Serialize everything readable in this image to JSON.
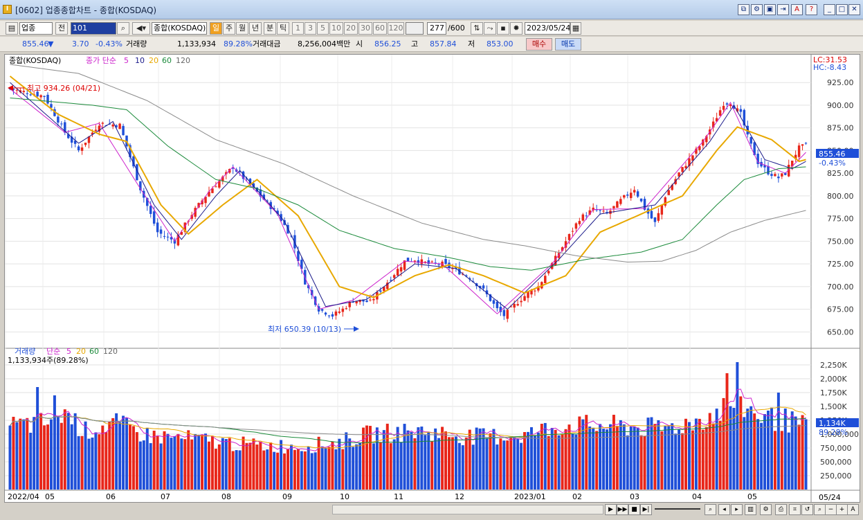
{
  "window": {
    "title": "[0602] 업종종합차트 - 종합(KOSDAQ)"
  },
  "toolbar": {
    "market": "업종",
    "mode": "전",
    "code": "101",
    "name": "종합(KOSDAQ)",
    "periods": [
      "일",
      "주",
      "월",
      "년",
      "분",
      "틱"
    ],
    "active_period": "일",
    "intervals": [
      "1",
      "3",
      "5",
      "10",
      "20",
      "30",
      "60",
      "120"
    ],
    "count": "277",
    "count_max": "/600",
    "date": "2023/05/24"
  },
  "quote": {
    "price": "855.46",
    "direction": "▼",
    "change": "3.70",
    "change_pct": "-0.43%",
    "volume_label": "거래량",
    "volume": "1,133,934",
    "volume_ratio": "89.28%",
    "amount_label": "거래대금",
    "amount": "8,256,004백만",
    "open_label": "시",
    "open": "856.25",
    "high_label": "고",
    "high": "857.84",
    "low_label": "저",
    "low": "853.00",
    "buy_label": "매수",
    "sell_label": "매도"
  },
  "colors": {
    "up": "#e8261a",
    "down": "#1f4fd8",
    "ma5": "#cc22cc",
    "ma10": "#1a1a8a",
    "ma20": "#e8a800",
    "ma60": "#1a8a3a",
    "ma120": "#8a8a8a"
  },
  "bottom": {
    "scroll_label": "5/24"
  },
  "chart_data": [
    {
      "type": "candlestick",
      "title": "종합(KOSDAQ)",
      "legend": {
        "prefix": "종가 단순",
        "periods": [
          "5",
          "10",
          "20",
          "60",
          "120"
        ]
      },
      "ylim": [
        635,
        945
      ],
      "yticks": [
        "925.00",
        "900.00",
        "875.00",
        "850.00",
        "825.00",
        "800.00",
        "775.00",
        "750.00",
        "725.00",
        "700.00",
        "675.00",
        "650.00"
      ],
      "xlabels": [
        "2022/04",
        "05",
        "06",
        "07",
        "08",
        "09",
        "10",
        "11",
        "12",
        "2023/01",
        "02",
        "03",
        "04",
        "05"
      ],
      "xlabel_right": "05/24",
      "last_price_label": "855.46",
      "last_change_label": "-0.43%",
      "lc_label": "LC:31.53",
      "hc_label": "HC:-8.43",
      "high_annotation": "최고 934.26 (04/21)",
      "low_annotation": "최저 650.39 (10/13)",
      "close_anchors": [
        [
          0,
          918
        ],
        [
          10,
          910
        ],
        [
          16,
          870
        ],
        [
          20,
          850
        ],
        [
          26,
          880
        ],
        [
          32,
          878
        ],
        [
          38,
          808
        ],
        [
          43,
          760
        ],
        [
          48,
          750
        ],
        [
          53,
          780
        ],
        [
          58,
          805
        ],
        [
          62,
          820
        ],
        [
          65,
          832
        ],
        [
          68,
          820
        ],
        [
          73,
          800
        ],
        [
          78,
          780
        ],
        [
          82,
          755
        ],
        [
          86,
          705
        ],
        [
          90,
          675
        ],
        [
          94,
          668
        ],
        [
          97,
          675
        ],
        [
          100,
          685
        ],
        [
          105,
          683
        ],
        [
          110,
          705
        ],
        [
          115,
          728
        ],
        [
          118,
          730
        ],
        [
          122,
          725
        ],
        [
          126,
          725
        ],
        [
          130,
          718
        ],
        [
          134,
          710
        ],
        [
          138,
          696
        ],
        [
          142,
          675
        ],
        [
          144,
          668
        ],
        [
          148,
          683
        ],
        [
          151,
          693
        ],
        [
          154,
          700
        ],
        [
          158,
          725
        ],
        [
          162,
          750
        ],
        [
          166,
          775
        ],
        [
          170,
          785
        ],
        [
          174,
          780
        ],
        [
          178,
          795
        ],
        [
          182,
          808
        ],
        [
          185,
          786
        ],
        [
          188,
          770
        ],
        [
          191,
          800
        ],
        [
          195,
          825
        ],
        [
          199,
          845
        ],
        [
          202,
          860
        ],
        [
          205,
          880
        ],
        [
          208,
          902
        ],
        [
          210,
          903
        ],
        [
          213,
          890
        ],
        [
          215,
          865
        ],
        [
          218,
          837
        ],
        [
          221,
          826
        ],
        [
          224,
          820
        ],
        [
          226,
          825
        ],
        [
          228,
          840
        ],
        [
          230,
          853
        ],
        [
          232,
          855.46
        ]
      ],
      "ma_anchors": {
        "ma5": [
          [
            0,
            918
          ],
          [
            16,
            870
          ],
          [
            26,
            880
          ],
          [
            38,
            808
          ],
          [
            48,
            750
          ],
          [
            58,
            805
          ],
          [
            65,
            832
          ],
          [
            78,
            780
          ],
          [
            90,
            675
          ],
          [
            100,
            685
          ],
          [
            115,
            728
          ],
          [
            126,
            725
          ],
          [
            142,
            670
          ],
          [
            158,
            725
          ],
          [
            170,
            785
          ],
          [
            185,
            786
          ],
          [
            202,
            860
          ],
          [
            210,
            903
          ],
          [
            218,
            837
          ],
          [
            226,
            825
          ],
          [
            232,
            848
          ]
        ],
        "ma10": [
          [
            0,
            925
          ],
          [
            20,
            858
          ],
          [
            30,
            882
          ],
          [
            42,
            790
          ],
          [
            50,
            752
          ],
          [
            60,
            800
          ],
          [
            67,
            828
          ],
          [
            80,
            772
          ],
          [
            92,
            678
          ],
          [
            104,
            686
          ],
          [
            118,
            725
          ],
          [
            130,
            720
          ],
          [
            145,
            675
          ],
          [
            160,
            730
          ],
          [
            172,
            780
          ],
          [
            188,
            790
          ],
          [
            204,
            860
          ],
          [
            211,
            900
          ],
          [
            220,
            840
          ],
          [
            228,
            830
          ],
          [
            232,
            838
          ]
        ],
        "ma20": [
          [
            0,
            932
          ],
          [
            14,
            890
          ],
          [
            26,
            868
          ],
          [
            34,
            860
          ],
          [
            44,
            790
          ],
          [
            52,
            758
          ],
          [
            62,
            790
          ],
          [
            72,
            818
          ],
          [
            84,
            778
          ],
          [
            96,
            700
          ],
          [
            106,
            688
          ],
          [
            118,
            712
          ],
          [
            128,
            724
          ],
          [
            138,
            712
          ],
          [
            150,
            693
          ],
          [
            162,
            712
          ],
          [
            172,
            760
          ],
          [
            184,
            780
          ],
          [
            196,
            800
          ],
          [
            206,
            850
          ],
          [
            212,
            876
          ],
          [
            222,
            862
          ],
          [
            230,
            838
          ],
          [
            232,
            840
          ]
        ],
        "ma60": [
          [
            0,
            908
          ],
          [
            24,
            900
          ],
          [
            34,
            895
          ],
          [
            46,
            855
          ],
          [
            60,
            818
          ],
          [
            72,
            808
          ],
          [
            84,
            790
          ],
          [
            96,
            762
          ],
          [
            112,
            742
          ],
          [
            128,
            732
          ],
          [
            140,
            722
          ],
          [
            152,
            718
          ],
          [
            168,
            730
          ],
          [
            184,
            738
          ],
          [
            196,
            752
          ],
          [
            206,
            790
          ],
          [
            214,
            818
          ],
          [
            224,
            830
          ],
          [
            232,
            832
          ]
        ],
        "ma120": [
          [
            0,
            945
          ],
          [
            20,
            935
          ],
          [
            40,
            905
          ],
          [
            60,
            862
          ],
          [
            80,
            835
          ],
          [
            100,
            800
          ],
          [
            120,
            770
          ],
          [
            138,
            752
          ],
          [
            150,
            745
          ],
          [
            165,
            734
          ],
          [
            180,
            727
          ],
          [
            190,
            728
          ],
          [
            200,
            740
          ],
          [
            210,
            760
          ],
          [
            220,
            773
          ],
          [
            232,
            784
          ]
        ]
      }
    },
    {
      "type": "bar",
      "title": "거래량",
      "legend": {
        "prefix": "단순",
        "periods": [
          "5",
          "20",
          "60",
          "120"
        ]
      },
      "current_label": "1,133,934주(89.28%)",
      "ylim": [
        0,
        2400000
      ],
      "yticks": [
        "2,250K",
        "2,000K",
        "1,750K",
        "1,500K",
        "1,250K",
        "1,000,000",
        "750,000",
        "500,000",
        "250,000"
      ],
      "last_value_label": "1,134K",
      "last_ratio_label": "89.28%",
      "volume_anchors": [
        [
          0,
          1150000
        ],
        [
          10,
          1200000
        ],
        [
          16,
          1400000
        ],
        [
          22,
          1050000
        ],
        [
          30,
          1200000
        ],
        [
          40,
          980000
        ],
        [
          55,
          900000
        ],
        [
          70,
          800000
        ],
        [
          85,
          780000
        ],
        [
          96,
          850000
        ],
        [
          105,
          1000000
        ],
        [
          120,
          1050000
        ],
        [
          135,
          950000
        ],
        [
          150,
          980000
        ],
        [
          160,
          1150000
        ],
        [
          175,
          1150000
        ],
        [
          190,
          1100000
        ],
        [
          198,
          1200000
        ],
        [
          205,
          1350000
        ],
        [
          210,
          1550000
        ],
        [
          214,
          1500000
        ],
        [
          220,
          1300000
        ],
        [
          226,
          1250000
        ],
        [
          232,
          1133934
        ]
      ],
      "volume_peaks": [
        [
          8,
          1850000
        ],
        [
          13,
          1700000
        ],
        [
          209,
          2100000
        ],
        [
          212,
          2300000
        ],
        [
          224,
          1750000
        ]
      ]
    }
  ]
}
